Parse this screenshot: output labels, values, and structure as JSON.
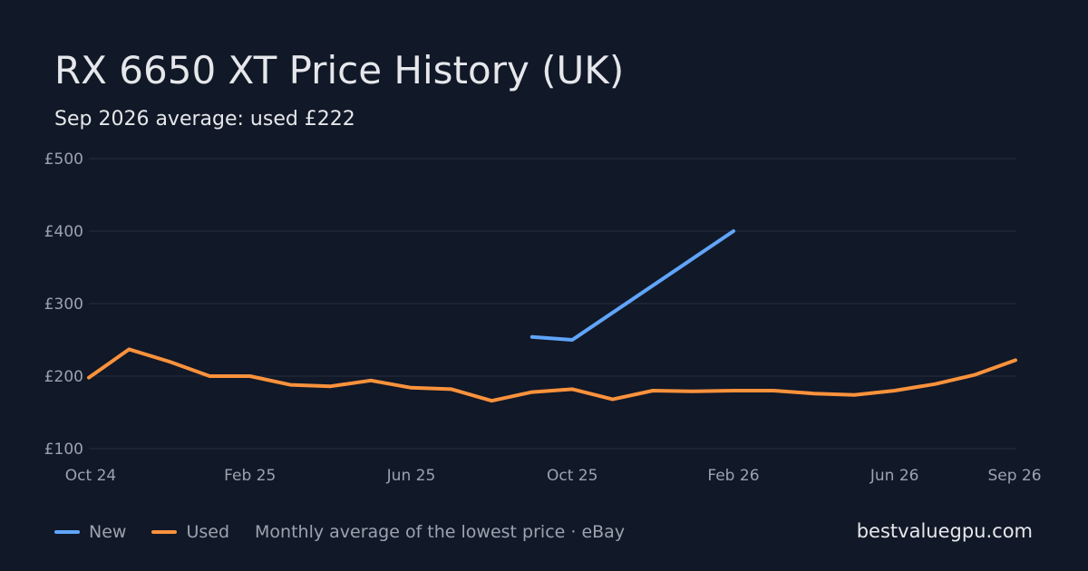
{
  "chart_data": {
    "type": "line",
    "title": "RX 6650 XT Price History (UK)",
    "subtitle": "Sep 2026 average: used £222",
    "x": [
      "2024-10",
      "2024-11",
      "2024-12",
      "2025-01",
      "2025-02",
      "2025-03",
      "2025-04",
      "2025-05",
      "2025-06",
      "2025-07",
      "2025-08",
      "2025-09",
      "2025-10",
      "2025-11",
      "2025-12",
      "2026-01",
      "2026-02",
      "2026-03",
      "2026-04",
      "2026-05",
      "2026-06",
      "2026-07",
      "2026-08",
      "2026-09"
    ],
    "x_tick_labels": [
      "Oct 24",
      "Feb 25",
      "Jun 25",
      "Oct 25",
      "Feb 26",
      "Jun 26",
      "Sep 26"
    ],
    "x_tick_positions": [
      "2024-10",
      "2025-02",
      "2025-06",
      "2025-10",
      "2026-02",
      "2026-06",
      "2026-09"
    ],
    "y_tick_labels": [
      "£100",
      "£200",
      "£300",
      "£400",
      "£500"
    ],
    "y_ticks": [
      100,
      200,
      300,
      400,
      500
    ],
    "ylim": [
      100,
      500
    ],
    "grid": true,
    "legend_position": "bottom-left",
    "series": [
      {
        "name": "New",
        "color": "#60a5fa",
        "values": [
          null,
          null,
          null,
          null,
          null,
          null,
          null,
          null,
          null,
          null,
          null,
          254,
          250,
          null,
          null,
          null,
          400,
          null,
          null,
          null,
          null,
          null,
          null,
          null
        ]
      },
      {
        "name": "Used",
        "color": "#fb923c",
        "values": [
          198,
          237,
          220,
          200,
          200,
          188,
          186,
          194,
          184,
          182,
          166,
          178,
          182,
          168,
          180,
          179,
          180,
          180,
          176,
          174,
          180,
          189,
          202,
          222
        ]
      }
    ]
  },
  "legend": {
    "new_label": "New",
    "used_label": "Used",
    "note": "Monthly average of the lowest price · eBay"
  },
  "brand": "bestvaluegpu.com",
  "colors": {
    "background": "#111827",
    "grid": "#263041",
    "text_primary": "#e5e7eb",
    "text_secondary": "#9ca3af",
    "new": "#60a5fa",
    "used": "#fb923c"
  }
}
